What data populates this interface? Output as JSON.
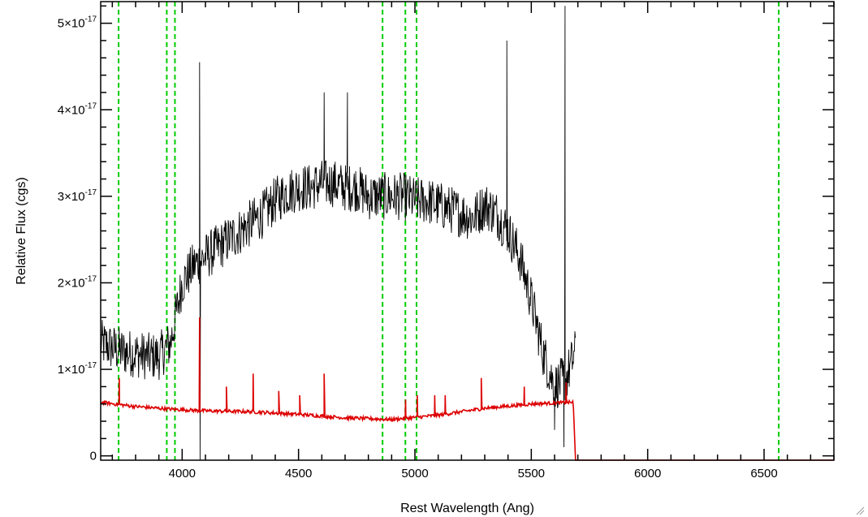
{
  "colors": {
    "spectrum": "#000000",
    "error": "#dd0000",
    "lines": "#00cc00",
    "axes": "#000000"
  },
  "chart_data": {
    "type": "line",
    "title": "",
    "xlabel": "Rest Wavelength (Ang)",
    "ylabel": "Relative Flux (cgs)",
    "xlim": [
      3650,
      6800
    ],
    "ylim": [
      -5e-19,
      5.25e-17
    ],
    "x_ticks": [
      {
        "value": 4000,
        "label": "4000"
      },
      {
        "value": 4500,
        "label": "4500"
      },
      {
        "value": 5000,
        "label": "5000"
      },
      {
        "value": 5500,
        "label": "5500"
      },
      {
        "value": 6000,
        "label": "6000"
      },
      {
        "value": 6500,
        "label": "6500"
      }
    ],
    "y_ticks": [
      {
        "value": 0,
        "mant": "0",
        "exp": ""
      },
      {
        "value": 1e-17,
        "mant": "1×10",
        "exp": "-17"
      },
      {
        "value": 2e-17,
        "mant": "2×10",
        "exp": "-17"
      },
      {
        "value": 3e-17,
        "mant": "3×10",
        "exp": "-17"
      },
      {
        "value": 4e-17,
        "mant": "4×10",
        "exp": "-17"
      },
      {
        "value": 5e-17,
        "mant": "5×10",
        "exp": "-17"
      }
    ],
    "x_minor_step": 100,
    "y_minor_step": 2e-18,
    "grid": false,
    "legend": "none",
    "vertical_lines": [
      3727,
      3934,
      3969,
      4861,
      4959,
      5007,
      6563
    ],
    "series": [
      {
        "role": "spectrum",
        "x": [
          3650,
          3700,
          3750,
          3800,
          3850,
          3900,
          3950,
          4000,
          4050,
          4100,
          4150,
          4200,
          4250,
          4300,
          4350,
          4400,
          4450,
          4500,
          4550,
          4600,
          4650,
          4700,
          4750,
          4800,
          4850,
          4900,
          4950,
          5000,
          5050,
          5100,
          5150,
          5200,
          5250,
          5300,
          5350,
          5400,
          5450,
          5500,
          5550,
          5600,
          5650,
          5690
        ],
        "y": [
          1.3e-17,
          1.25e-17,
          1.2e-17,
          1.18e-17,
          1.15e-17,
          1.15e-17,
          1.3e-17,
          2e-17,
          2.2e-17,
          2.3e-17,
          2.4e-17,
          2.5e-17,
          2.6e-17,
          2.7e-17,
          2.8e-17,
          2.95e-17,
          3.05e-17,
          3.1e-17,
          3.1e-17,
          3.15e-17,
          3.15e-17,
          3.1e-17,
          3.1e-17,
          3e-17,
          3e-17,
          3e-17,
          3e-17,
          2.95e-17,
          2.95e-17,
          2.9e-17,
          2.85e-17,
          2.8e-17,
          2.75e-17,
          2.9e-17,
          2.8e-17,
          2.6e-17,
          2.3e-17,
          1.8e-17,
          1.2e-17,
          8e-18,
          9e-18,
          1.2e-17
        ],
        "noise_scale": 2.8e-18,
        "spikes": [
          {
            "x": 4075,
            "y": 4.55e-17
          },
          {
            "x": 4077,
            "y": -5e-19
          },
          {
            "x": 4610,
            "y": 4.2e-17
          },
          {
            "x": 4710,
            "y": 4.2e-17
          },
          {
            "x": 5395,
            "y": 4.8e-17
          },
          {
            "x": 5645,
            "y": 5.2e-17
          },
          {
            "x": 5640,
            "y": 1e-18
          },
          {
            "x": 5600,
            "y": 3e-18
          }
        ]
      },
      {
        "role": "error",
        "x": [
          3650,
          3800,
          3950,
          4100,
          4300,
          4500,
          4700,
          4900,
          5100,
          5300,
          5500,
          5680,
          5690,
          5700,
          6800
        ],
        "y": [
          6.2e-18,
          5.7e-18,
          5.4e-18,
          5.2e-18,
          5.1e-18,
          4.8e-18,
          4.4e-18,
          4.2e-18,
          4.7e-18,
          5.5e-18,
          6e-18,
          6.2e-18,
          -5e-19,
          -5e-19,
          -5e-19
        ],
        "spikes": [
          {
            "x": 3730,
            "y": 9e-18
          },
          {
            "x": 4075,
            "y": 1.6e-17
          },
          {
            "x": 4190,
            "y": 8e-18
          },
          {
            "x": 4305,
            "y": 9.5e-18
          },
          {
            "x": 4415,
            "y": 7.5e-18
          },
          {
            "x": 4505,
            "y": 7e-18
          },
          {
            "x": 4610,
            "y": 9.5e-18
          },
          {
            "x": 4960,
            "y": 6.5e-18
          },
          {
            "x": 5010,
            "y": 7e-18
          },
          {
            "x": 5085,
            "y": 7e-18
          },
          {
            "x": 5130,
            "y": 7e-18
          },
          {
            "x": 5285,
            "y": 9e-18
          },
          {
            "x": 5470,
            "y": 8e-18
          },
          {
            "x": 5650,
            "y": 8.5e-18
          }
        ]
      }
    ]
  }
}
